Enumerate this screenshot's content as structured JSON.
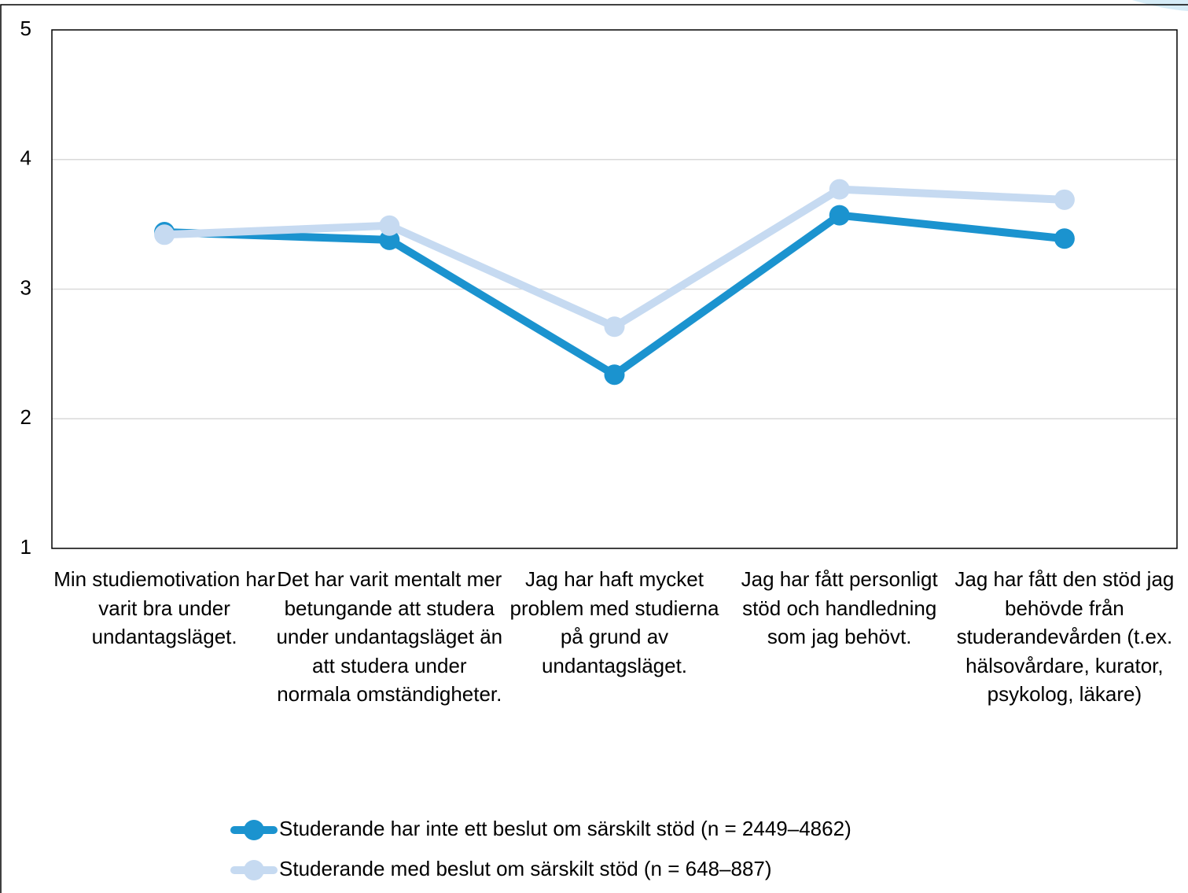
{
  "chart_data": {
    "type": "line",
    "categories": [
      "Min studiemotivation har varit bra under undantagsläget.",
      "Det har varit mentalt mer betungande att studera under undantagsläget än att studera under normala omständigheter.",
      "Jag har haft mycket problem med studierna på grund av undantagsläget.",
      "Jag har fått personligt stöd och handledning som jag behövt.",
      "Jag har fått den stöd jag behövde från studerandevården (t.ex. hälsovårdare, kurator, psykolog, läkare)"
    ],
    "series": [
      {
        "name": "Studerande har inte ett beslut om särskilt stöd (n = 2449–4862)",
        "color": "#1b93cf",
        "values": [
          3.44,
          3.38,
          2.34,
          3.57,
          3.39
        ]
      },
      {
        "name": "Studerande med beslut om särskilt stöd (n = 648–887)",
        "color": "#c6daf1",
        "values": [
          3.42,
          3.49,
          2.71,
          3.77,
          3.69
        ]
      }
    ],
    "ylim": [
      1,
      5
    ],
    "yticks": [
      1,
      2,
      3,
      4,
      5
    ],
    "grid": true,
    "legend": "bottom"
  }
}
